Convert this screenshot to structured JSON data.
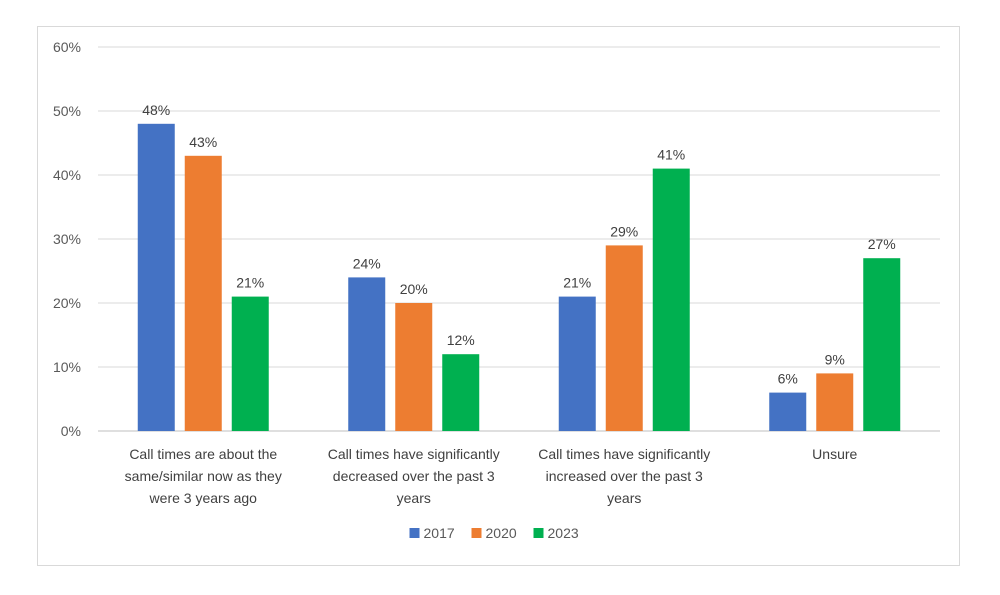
{
  "chart_data": {
    "type": "bar",
    "categories": [
      [
        "Call times are about the",
        "same/similar now as they",
        "were 3 years ago"
      ],
      [
        "Call times have significantly",
        "decreased over the past 3",
        "years"
      ],
      [
        "Call times have significantly",
        "increased over the past 3",
        "years"
      ],
      [
        "Unsure"
      ]
    ],
    "series": [
      {
        "name": "2017",
        "color": "#4472c4",
        "values": [
          48,
          24,
          21,
          6
        ],
        "labels": [
          "48%",
          "24%",
          "21%",
          "6%"
        ]
      },
      {
        "name": "2020",
        "color": "#ed7d31",
        "values": [
          43,
          20,
          29,
          9
        ],
        "labels": [
          "43%",
          "20%",
          "29%",
          "9%"
        ]
      },
      {
        "name": "2023",
        "color": "#00b050",
        "values": [
          21,
          12,
          41,
          27
        ],
        "labels": [
          "21%",
          "12%",
          "41%",
          "27%"
        ]
      }
    ],
    "ylim": [
      0,
      60
    ],
    "yticks": [
      0,
      10,
      20,
      30,
      40,
      50,
      60
    ],
    "ytick_labels": [
      "0%",
      "10%",
      "20%",
      "30%",
      "40%",
      "50%",
      "60%"
    ],
    "grid": true,
    "legend_position": "bottom"
  }
}
